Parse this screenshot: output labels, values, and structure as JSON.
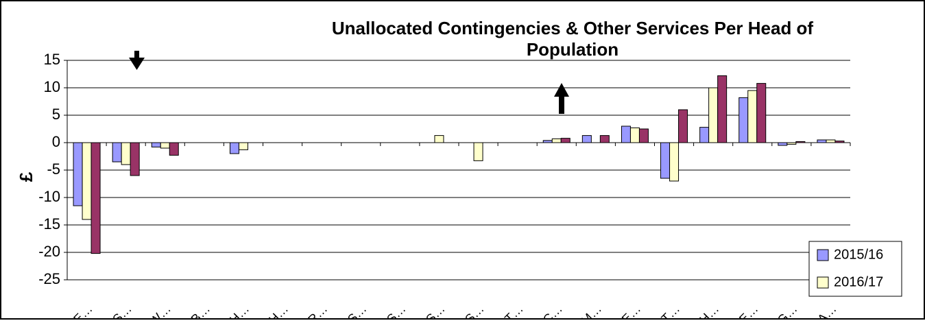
{
  "chart_data": {
    "type": "bar",
    "title": [
      "Unallocated Contingencies & Other Services Per Head of",
      "Population"
    ],
    "y_label": "£",
    "categories": [
      "E…",
      "S…",
      "W…",
      "B…",
      "H…",
      "H…",
      "R…",
      "S…",
      "S…",
      "S…",
      "S…",
      "T…",
      "C…",
      "M…",
      "E…",
      "T…",
      "H…",
      "E…",
      "G…",
      "A…"
    ],
    "series": [
      {
        "name": "2015/16",
        "color": "#9999ff",
        "values": [
          -11.5,
          -3.5,
          -0.8,
          0,
          -2,
          0,
          0,
          0,
          0,
          0,
          0,
          0,
          0.4,
          1.3,
          3,
          -6.5,
          2.8,
          8.2,
          -0.5,
          0.5
        ]
      },
      {
        "name": "2016/17",
        "color": "#ffffcc",
        "values": [
          -14,
          -4,
          -1,
          0,
          -1.3,
          0,
          0,
          0,
          0,
          1.3,
          -3.3,
          0,
          0.7,
          0,
          2.7,
          -7,
          10,
          9.5,
          -0.3,
          0.5
        ]
      },
      {
        "color": "#993366",
        "values": [
          -20.2,
          -6,
          -2.3,
          0,
          0,
          0,
          0,
          0,
          0,
          0,
          0,
          0,
          0.8,
          1.3,
          2.5,
          6,
          12.2,
          10.8,
          0.2,
          0.3
        ]
      }
    ],
    "ylim": [
      -25,
      15
    ],
    "yticks": [
      -25,
      -20,
      -15,
      -10,
      -5,
      0,
      5,
      10,
      15
    ],
    "grid": true
  }
}
